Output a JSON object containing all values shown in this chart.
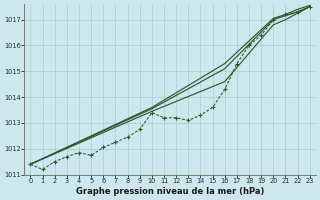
{
  "title": "Graphe pression niveau de la mer (hPa)",
  "bg_color": "#cce8ee",
  "grid_color": "#aacccc",
  "line_color": "#2d5a2d",
  "x_values": [
    0,
    1,
    2,
    3,
    4,
    5,
    6,
    7,
    8,
    9,
    10,
    11,
    12,
    13,
    14,
    15,
    16,
    17,
    18,
    19,
    20,
    21,
    22,
    23
  ],
  "series_dashed": [
    1011.4,
    1011.2,
    1011.5,
    1011.7,
    1011.85,
    1011.75,
    1012.05,
    1012.25,
    1012.45,
    1012.75,
    1013.4,
    1013.2,
    1013.2,
    1013.1,
    1013.3,
    1013.6,
    1014.3,
    1015.3,
    1016.0,
    1016.4,
    1017.0,
    1017.2,
    1017.3,
    1017.5
  ],
  "trend1": [
    [
      0,
      1011.4
    ],
    [
      10,
      1013.45
    ],
    [
      16,
      1014.6
    ],
    [
      20,
      1016.8
    ],
    [
      21,
      1017.0
    ],
    [
      22,
      1017.25
    ],
    [
      23,
      1017.5
    ]
  ],
  "trend2": [
    [
      0,
      1011.4
    ],
    [
      10,
      1013.55
    ],
    [
      16,
      1015.1
    ],
    [
      20,
      1017.0
    ],
    [
      21,
      1017.15
    ],
    [
      22,
      1017.3
    ],
    [
      23,
      1017.5
    ]
  ],
  "trend3": [
    [
      0,
      1011.4
    ],
    [
      10,
      1013.6
    ],
    [
      16,
      1015.3
    ],
    [
      20,
      1017.05
    ],
    [
      21,
      1017.2
    ],
    [
      22,
      1017.4
    ],
    [
      23,
      1017.55
    ]
  ],
  "ylim": [
    1011.0,
    1017.6
  ],
  "yticks": [
    1011,
    1012,
    1013,
    1014,
    1015,
    1016,
    1017
  ],
  "xlim": [
    -0.5,
    23.5
  ],
  "xticks": [
    0,
    1,
    2,
    3,
    4,
    5,
    6,
    7,
    8,
    9,
    10,
    11,
    12,
    13,
    14,
    15,
    16,
    17,
    18,
    19,
    20,
    21,
    22,
    23
  ],
  "xlabel_fontsize": 6.0,
  "tick_fontsize": 4.8
}
